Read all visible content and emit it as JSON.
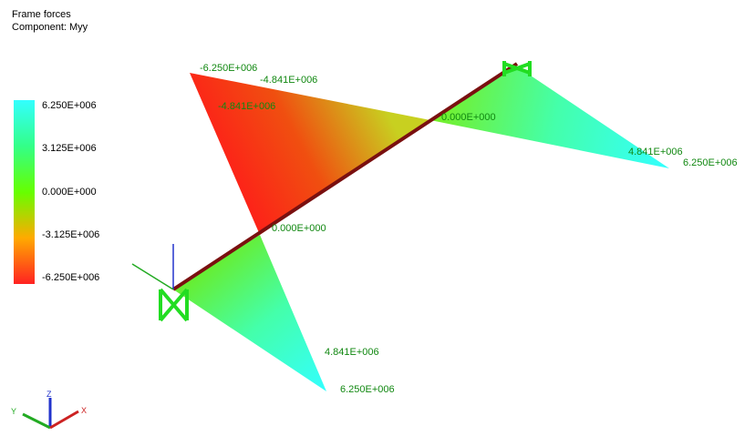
{
  "header": {
    "title": "Frame forces",
    "component": "Component: Myy"
  },
  "legend": {
    "labels": [
      "6.250E+006",
      "3.125E+006",
      "0.000E+000",
      "-3.125E+006",
      "-6.250E+006"
    ],
    "colors": [
      "#33ffff",
      "#33ff88",
      "#66ff00",
      "#ffaa00",
      "#ff2222"
    ]
  },
  "diagram_labels": {
    "top_left_peak": "-6.250E+006",
    "top_left_mid": "-4.841E+006",
    "top_left_inner": "-4.841E+006",
    "zero_right": "0.000E+000",
    "zero_center": "0.000E+000",
    "right_mid": "4.841E+006",
    "right_peak": "6.250E+006",
    "bottom_mid": "4.841E+006",
    "bottom_peak": "6.250E+006"
  },
  "triad": {
    "x_label": "X",
    "y_label": "Y",
    "z_label": "Z"
  },
  "colors": {
    "member": "#7a1010",
    "support": "#22dd22",
    "label_text": "#118811",
    "axis_blue": "#2233cc",
    "axis_green": "#22aa22",
    "axis_red": "#cc2222"
  }
}
